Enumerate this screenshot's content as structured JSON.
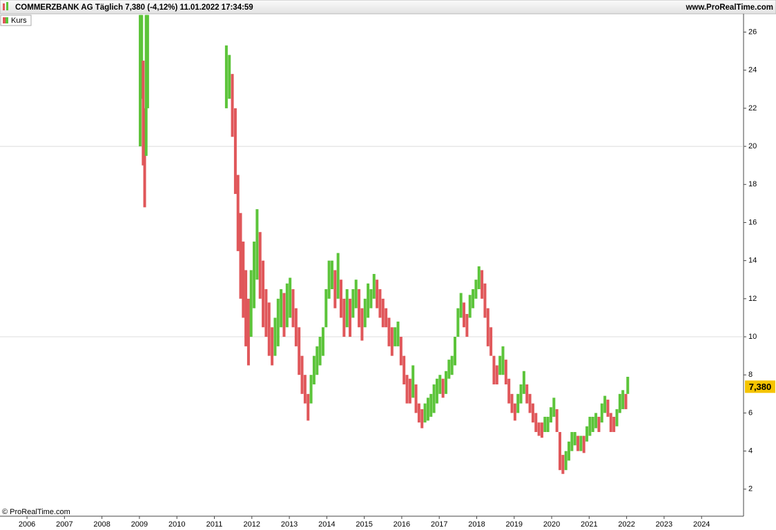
{
  "chart_data": {
    "type": "range-bar",
    "title": "COMMERZBANK AG Täglich 7,380 (-4,12%) 11.01.2022 17:34:59",
    "source": "www.ProRealTime.com",
    "copyright": "© ProRealTime.com",
    "last_value": 7.38,
    "last_label": "7,380",
    "up_color": "#5cc43a",
    "down_color": "#e0575a",
    "last_color": "#f5c400",
    "xlim": [
      2005.28,
      2025.12
    ],
    "xticks": [
      2006,
      2007,
      2008,
      2009,
      2010,
      2011,
      2012,
      2013,
      2014,
      2015,
      2016,
      2017,
      2018,
      2019,
      2020,
      2021,
      2022,
      2023,
      2024
    ],
    "ylim": [
      0.58,
      26.96
    ],
    "yticks": [
      2,
      4,
      6,
      8,
      10,
      12,
      14,
      16,
      18,
      20,
      22,
      24,
      26
    ],
    "x": [
      2009.02,
      2009.06,
      2009.1,
      2009.14,
      2009.18,
      2009.22,
      2010.3,
      2011.32,
      2011.4,
      2011.48,
      2011.56,
      2011.63,
      2011.7,
      2011.77,
      2011.84,
      2011.91,
      2011.98,
      2012.06,
      2012.14,
      2012.22,
      2012.3,
      2012.38,
      2012.46,
      2012.54,
      2012.62,
      2012.7,
      2012.78,
      2012.86,
      2012.94,
      2013.02,
      2013.1,
      2013.18,
      2013.26,
      2013.34,
      2013.42,
      2013.5,
      2013.58,
      2013.66,
      2013.74,
      2013.82,
      2013.9,
      2013.98,
      2014.06,
      2014.14,
      2014.22,
      2014.3,
      2014.38,
      2014.46,
      2014.54,
      2014.62,
      2014.7,
      2014.78,
      2014.86,
      2014.94,
      2015.02,
      2015.1,
      2015.18,
      2015.26,
      2015.34,
      2015.42,
      2015.5,
      2015.58,
      2015.66,
      2015.74,
      2015.82,
      2015.9,
      2015.98,
      2016.06,
      2016.14,
      2016.22,
      2016.3,
      2016.38,
      2016.46,
      2016.54,
      2016.62,
      2016.7,
      2016.78,
      2016.86,
      2016.94,
      2017.02,
      2017.1,
      2017.18,
      2017.26,
      2017.34,
      2017.42,
      2017.5,
      2017.58,
      2017.66,
      2017.74,
      2017.82,
      2017.9,
      2017.98,
      2018.06,
      2018.14,
      2018.22,
      2018.3,
      2018.38,
      2018.46,
      2018.54,
      2018.62,
      2018.7,
      2018.78,
      2018.86,
      2018.94,
      2019.02,
      2019.1,
      2019.18,
      2019.26,
      2019.34,
      2019.42,
      2019.5,
      2019.58,
      2019.66,
      2019.74,
      2019.82,
      2019.9,
      2019.98,
      2020.06,
      2020.14,
      2020.22,
      2020.3,
      2020.38,
      2020.46,
      2020.54,
      2020.62,
      2020.7,
      2020.78,
      2020.86,
      2020.94,
      2021.02,
      2021.1,
      2021.18,
      2021.26,
      2021.34,
      2021.42,
      2021.5,
      2021.58,
      2021.66,
      2021.74,
      2021.82,
      2021.9,
      2021.98,
      2022.03
    ],
    "series": [
      {
        "name": "Kurs",
        "low": [
          20.0,
          22.5,
          19.0,
          16.8,
          19.5,
          22.0,
          null,
          22.0,
          22.5,
          20.5,
          17.5,
          14.5,
          12.0,
          11.0,
          9.5,
          8.5,
          10.0,
          11.5,
          13.0,
          12.0,
          10.5,
          10.0,
          9.0,
          8.5,
          9.0,
          9.5,
          10.5,
          10.0,
          10.5,
          11.0,
          10.5,
          9.5,
          8.0,
          7.0,
          6.5,
          5.6,
          6.5,
          7.5,
          8.0,
          8.5,
          9.0,
          10.5,
          12.0,
          12.5,
          11.5,
          12.0,
          11.0,
          10.0,
          10.5,
          10.0,
          11.0,
          11.5,
          10.5,
          9.8,
          10.5,
          11.0,
          11.5,
          12.0,
          11.5,
          11.0,
          10.5,
          10.5,
          9.5,
          9.0,
          9.5,
          9.5,
          8.5,
          7.5,
          6.5,
          6.5,
          6.8,
          6.0,
          5.5,
          5.2,
          5.5,
          5.6,
          5.8,
          6.0,
          6.5,
          7.0,
          6.8,
          7.0,
          7.8,
          8.0,
          8.5,
          10.0,
          11.0,
          10.5,
          10.0,
          11.0,
          11.5,
          12.0,
          12.5,
          12.0,
          11.0,
          9.5,
          9.0,
          7.5,
          7.5,
          8.0,
          8.0,
          7.5,
          6.5,
          6.0,
          5.6,
          6.0,
          6.5,
          7.0,
          6.5,
          6.0,
          5.5,
          5.0,
          4.8,
          4.7,
          5.0,
          5.0,
          5.5,
          5.8,
          5.0,
          3.0,
          2.8,
          3.0,
          3.5,
          4.0,
          4.3,
          4.0,
          4.0,
          3.9,
          4.5,
          4.8,
          5.0,
          5.2,
          5.0,
          5.5,
          6.0,
          5.8,
          5.0,
          5.0,
          5.3,
          6.0,
          6.2,
          6.2,
          7.0
        ],
        "high": [
          26.9,
          26.9,
          24.5,
          22.0,
          26.9,
          26.9,
          null,
          25.3,
          24.8,
          23.8,
          22.0,
          18.5,
          16.5,
          15.0,
          13.5,
          12.0,
          13.5,
          15.0,
          16.7,
          15.5,
          14.0,
          12.5,
          11.8,
          10.5,
          11.0,
          12.0,
          12.5,
          12.3,
          12.8,
          13.1,
          12.5,
          11.5,
          10.5,
          9.0,
          8.0,
          7.0,
          8.0,
          9.0,
          9.5,
          10.0,
          10.5,
          12.5,
          14.0,
          14.0,
          13.5,
          14.4,
          13.0,
          12.0,
          12.5,
          12.0,
          12.5,
          13.0,
          12.5,
          11.5,
          12.0,
          12.8,
          12.5,
          13.3,
          13.0,
          12.5,
          12.0,
          11.5,
          11.0,
          10.5,
          10.5,
          10.8,
          10.0,
          9.0,
          8.0,
          7.8,
          8.5,
          7.5,
          6.5,
          6.2,
          6.5,
          6.8,
          7.0,
          7.5,
          7.8,
          8.0,
          7.8,
          8.2,
          8.8,
          9.0,
          10.0,
          11.5,
          12.3,
          11.8,
          11.2,
          12.2,
          12.5,
          13.0,
          13.7,
          13.5,
          12.8,
          11.5,
          10.5,
          9.0,
          8.5,
          9.0,
          9.5,
          8.8,
          7.8,
          7.0,
          6.5,
          7.0,
          7.5,
          8.2,
          7.5,
          7.0,
          6.5,
          6.0,
          5.5,
          5.5,
          5.8,
          5.8,
          6.3,
          6.8,
          6.2,
          5.0,
          3.8,
          4.0,
          4.5,
          5.0,
          5.0,
          4.8,
          4.8,
          4.8,
          5.3,
          5.8,
          5.8,
          6.0,
          5.8,
          6.5,
          6.9,
          6.7,
          6.0,
          5.8,
          6.2,
          7.0,
          7.2,
          7.0,
          7.9
        ]
      }
    ]
  }
}
